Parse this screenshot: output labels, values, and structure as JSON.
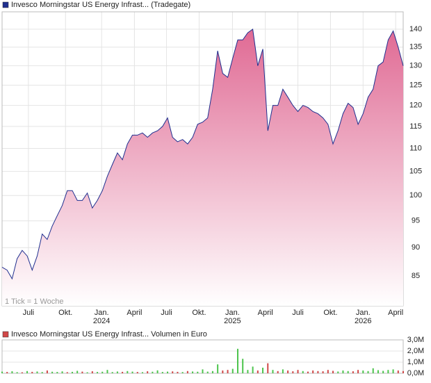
{
  "chart_data": [
    {
      "type": "area",
      "title": "Invesco Morningstar US Energy Infrast... (Tradegate)",
      "annotation": "1 Tick = 1 Woche",
      "color": "#1f2f8f",
      "fill_color": "#e06a94",
      "log_scale": true,
      "grid": true,
      "x": [
        0,
        2,
        4,
        6,
        8,
        10,
        12,
        14,
        16,
        18,
        20,
        22,
        24,
        26,
        28,
        30,
        32,
        34,
        36,
        38,
        40,
        42,
        44,
        46,
        48,
        50,
        52,
        54,
        56,
        58,
        60,
        62,
        64,
        66,
        68,
        70,
        72,
        74,
        76,
        78,
        80,
        82,
        84,
        86,
        88,
        90,
        92,
        94,
        96,
        98,
        100,
        102,
        104,
        106,
        108,
        110,
        112,
        114,
        116,
        118,
        120,
        122,
        124,
        126,
        128,
        130,
        132,
        134,
        136,
        138,
        140,
        142,
        144,
        146,
        148,
        150,
        152,
        154,
        156,
        158,
        160
      ],
      "values": [
        86.5,
        86,
        84.5,
        88,
        89.5,
        88.5,
        86,
        88.5,
        92.5,
        91.5,
        94,
        96,
        98,
        101,
        101,
        99,
        99,
        100.5,
        97.5,
        99,
        101,
        104,
        106.5,
        109,
        107.5,
        111,
        113,
        113,
        113.5,
        112.5,
        113.5,
        114,
        115,
        117,
        112.5,
        111.5,
        112,
        111,
        112.5,
        115.5,
        116,
        117,
        124,
        134,
        128,
        127,
        132,
        137,
        137,
        139,
        140,
        130,
        134.5,
        114,
        120,
        120,
        124,
        122,
        120,
        118.5,
        120,
        119.5,
        118.5,
        118,
        117,
        115.5,
        111,
        114,
        118,
        120.5,
        119.5,
        115.5,
        118,
        122,
        124,
        130,
        131,
        137,
        139.5,
        135,
        130
      ],
      "xlim": [
        0,
        160
      ],
      "xticks": [
        {
          "value": 10.5,
          "label": "Juli"
        },
        {
          "value": 25.3,
          "label": "Okt."
        },
        {
          "value": 39.7,
          "label": "Jan."
        },
        {
          "value": 52.8,
          "label": "April"
        },
        {
          "value": 65.6,
          "label": "Juli"
        },
        {
          "value": 78.6,
          "label": "Okt."
        },
        {
          "value": 91.9,
          "label": "Jan."
        },
        {
          "value": 105,
          "label": "April"
        },
        {
          "value": 118,
          "label": "Juli"
        },
        {
          "value": 131,
          "label": "Okt."
        },
        {
          "value": 144,
          "label": "Jan."
        },
        {
          "value": 157,
          "label": "April"
        }
      ],
      "year_labels": [
        {
          "value": 39.7,
          "label": "2024"
        },
        {
          "value": 91.9,
          "label": "2025"
        },
        {
          "value": 144,
          "label": "2026"
        }
      ],
      "ylim": [
        80,
        145
      ],
      "yticks": [
        85,
        90,
        95,
        100,
        105,
        110,
        115,
        120,
        125,
        130,
        135,
        140
      ]
    },
    {
      "type": "bar",
      "title": "Invesco Morningstar US Energy Infrast... Volumen in Euro",
      "legend_color": "#d04848",
      "x": [
        0,
        2,
        4,
        6,
        8,
        10,
        12,
        14,
        16,
        18,
        20,
        22,
        24,
        26,
        28,
        30,
        32,
        34,
        36,
        38,
        40,
        42,
        44,
        46,
        48,
        50,
        52,
        54,
        56,
        58,
        60,
        62,
        64,
        66,
        68,
        70,
        72,
        74,
        76,
        78,
        80,
        82,
        84,
        86,
        88,
        90,
        92,
        94,
        96,
        98,
        100,
        102,
        104,
        106,
        108,
        110,
        112,
        114,
        116,
        118,
        120,
        122,
        124,
        126,
        128,
        130,
        132,
        134,
        136,
        138,
        140,
        142,
        144,
        146,
        148,
        150,
        152,
        154,
        156,
        158,
        160
      ],
      "values": [
        150000,
        120000,
        180000,
        100000,
        90000,
        200000,
        130000,
        160000,
        110000,
        250000,
        140000,
        120000,
        170000,
        100000,
        130000,
        220000,
        150000,
        90000,
        180000,
        120000,
        140000,
        300000,
        110000,
        160000,
        130000,
        200000,
        150000,
        120000,
        100000,
        180000,
        140000,
        260000,
        120000,
        150000,
        170000,
        130000,
        110000,
        200000,
        160000,
        140000,
        350000,
        150000,
        200000,
        800000,
        250000,
        300000,
        400000,
        2200000,
        1300000,
        300000,
        600000,
        250000,
        500000,
        900000,
        300000,
        200000,
        350000,
        250000,
        180000,
        300000,
        200000,
        150000,
        250000,
        200000,
        180000,
        300000,
        220000,
        160000,
        250000,
        200000,
        180000,
        300000,
        250000,
        200000,
        450000,
        280000,
        220000,
        300000,
        350000,
        250000,
        200000
      ],
      "colors": [
        "#4cc44c",
        "#d04848",
        "#4cc44c",
        "#4cc44c",
        "#d04848",
        "#4cc44c",
        "#d04848",
        "#4cc44c",
        "#4cc44c",
        "#d04848",
        "#4cc44c",
        "#4cc44c",
        "#4cc44c",
        "#d04848",
        "#4cc44c",
        "#4cc44c",
        "#d04848",
        "#4cc44c",
        "#d04848",
        "#4cc44c",
        "#4cc44c",
        "#4cc44c",
        "#4cc44c",
        "#4cc44c",
        "#d04848",
        "#4cc44c",
        "#4cc44c",
        "#d04848",
        "#4cc44c",
        "#d04848",
        "#4cc44c",
        "#4cc44c",
        "#4cc44c",
        "#4cc44c",
        "#d04848",
        "#d04848",
        "#4cc44c",
        "#d04848",
        "#4cc44c",
        "#4cc44c",
        "#4cc44c",
        "#4cc44c",
        "#4cc44c",
        "#4cc44c",
        "#d04848",
        "#d04848",
        "#4cc44c",
        "#4cc44c",
        "#4cc44c",
        "#4cc44c",
        "#4cc44c",
        "#d04848",
        "#4cc44c",
        "#d04848",
        "#4cc44c",
        "#d04848",
        "#4cc44c",
        "#d04848",
        "#d04848",
        "#d04848",
        "#4cc44c",
        "#d04848",
        "#d04848",
        "#d04848",
        "#d04848",
        "#d04848",
        "#d04848",
        "#4cc44c",
        "#4cc44c",
        "#4cc44c",
        "#d04848",
        "#d04848",
        "#4cc44c",
        "#4cc44c",
        "#4cc44c",
        "#4cc44c",
        "#4cc44c",
        "#4cc44c",
        "#4cc44c",
        "#d04848",
        "#d04848"
      ],
      "xlim": [
        0,
        160
      ],
      "ylim": [
        0,
        3000000
      ],
      "yticks": [
        {
          "value": 0,
          "label": "0,0M"
        },
        {
          "value": 1000000,
          "label": "1,0M"
        },
        {
          "value": 2000000,
          "label": "2,0M"
        },
        {
          "value": 3000000,
          "label": "3,0M"
        }
      ],
      "grid": true
    }
  ]
}
